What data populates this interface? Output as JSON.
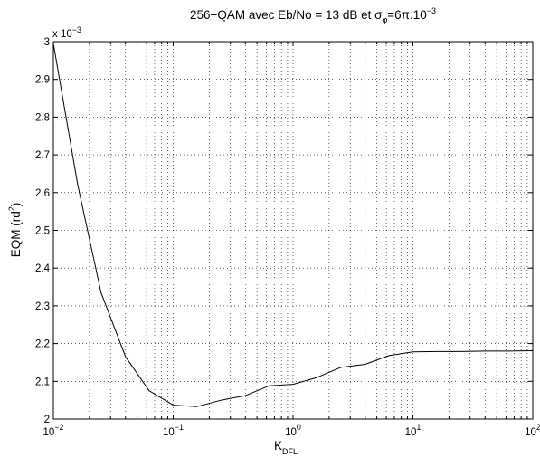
{
  "chart_data": {
    "type": "line",
    "title": {
      "prefix": "256−QAM avec Eb/No = 13 dB et σ",
      "sub": "φ",
      "mid": "=6π.10",
      "sup": "−3"
    },
    "xlabel": {
      "base": "K",
      "sub": "DFL"
    },
    "ylabel": {
      "base": "EQM (rd",
      "sup": "2",
      "end": ")"
    },
    "y_exponent": {
      "base": "x 10",
      "sup": "−3"
    },
    "x_scale": "log",
    "xlim": [
      0.01,
      100
    ],
    "ylim": [
      2.0,
      3.0
    ],
    "grid": true,
    "x_tick_labels": [
      {
        "value": 0.01,
        "base": "10",
        "exp": "−2"
      },
      {
        "value": 0.1,
        "base": "10",
        "exp": "−1"
      },
      {
        "value": 1,
        "base": "10",
        "exp": "0"
      },
      {
        "value": 10,
        "base": "10",
        "exp": "1"
      },
      {
        "value": 100,
        "base": "10",
        "exp": "2"
      }
    ],
    "y_ticks": [
      2,
      2.1,
      2.2,
      2.3,
      2.4,
      2.5,
      2.6,
      2.7,
      2.8,
      2.9,
      3
    ],
    "y_tick_labels": [
      "2",
      "2.1",
      "2.2",
      "2.3",
      "2.4",
      "2.5",
      "2.6",
      "2.7",
      "2.8",
      "2.9",
      "3"
    ],
    "series": [
      {
        "color": "#000000",
        "x": [
          0.01,
          0.016,
          0.025,
          0.04,
          0.063,
          0.1,
          0.158,
          0.25,
          0.4,
          0.63,
          1.0,
          1.58,
          2.5,
          4.0,
          6.3,
          10,
          15.8,
          25,
          40,
          63,
          100
        ],
        "y": [
          2.995,
          2.62,
          2.335,
          2.165,
          2.075,
          2.037,
          2.033,
          2.05,
          2.062,
          2.088,
          2.092,
          2.11,
          2.137,
          2.145,
          2.168,
          2.178,
          2.179,
          2.179,
          2.18,
          2.18,
          2.181
        ]
      }
    ]
  }
}
